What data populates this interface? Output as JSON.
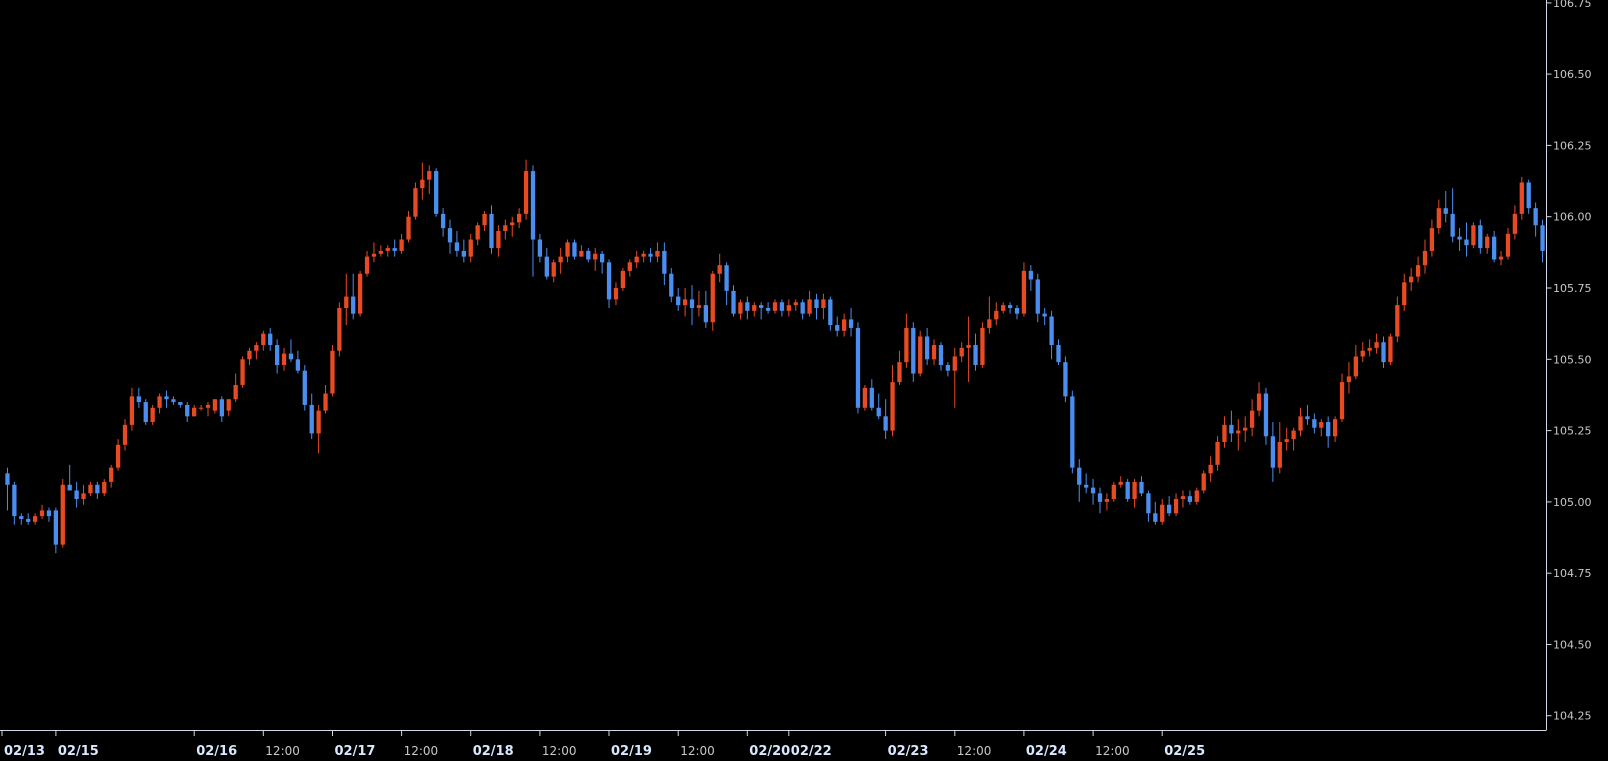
{
  "chart_data": {
    "type": "candlestick",
    "title": "",
    "xlabel": "",
    "ylabel": "",
    "ylim": [
      104.2,
      106.76
    ],
    "y_ticks": [
      "104.25",
      "104.50",
      "104.75",
      "105.00",
      "105.25",
      "105.50",
      "105.75",
      "106.00",
      "106.25",
      "106.50",
      "106.75"
    ],
    "x_ticks": [
      {
        "label": "02/13",
        "style": "date",
        "index": 0
      },
      {
        "label": "02/15",
        "style": "date",
        "index": 7
      },
      {
        "label": "02/16",
        "style": "date",
        "index": 27
      },
      {
        "label": "12:00",
        "style": "time",
        "index": 37
      },
      {
        "label": "02/17",
        "style": "date",
        "index": 47
      },
      {
        "label": "12:00",
        "style": "time",
        "index": 57
      },
      {
        "label": "02/18",
        "style": "date",
        "index": 67
      },
      {
        "label": "12:00",
        "style": "time",
        "index": 77
      },
      {
        "label": "02/19",
        "style": "date",
        "index": 87
      },
      {
        "label": "12:00",
        "style": "time",
        "index": 97
      },
      {
        "label": "02/20",
        "style": "date",
        "index": 107
      },
      {
        "label": "02/22",
        "style": "date",
        "index": 113
      },
      {
        "label": "02/23",
        "style": "date",
        "index": 127
      },
      {
        "label": "12:00",
        "style": "time",
        "index": 137
      },
      {
        "label": "02/24",
        "style": "date",
        "index": 147
      },
      {
        "label": "12:00",
        "style": "time",
        "index": 157
      },
      {
        "label": "02/25",
        "style": "date",
        "index": 167
      }
    ],
    "colors": {
      "up": "#e84b23",
      "down": "#4a8ff0",
      "background": "#000000",
      "axis": "#d0d8e8"
    },
    "candles": [
      [
        105.1,
        105.12,
        104.97,
        105.06
      ],
      [
        105.06,
        105.07,
        104.92,
        104.95
      ],
      [
        104.95,
        104.96,
        104.92,
        104.94
      ],
      [
        104.94,
        104.96,
        104.92,
        104.93
      ],
      [
        104.93,
        104.96,
        104.92,
        104.95
      ],
      [
        104.95,
        104.99,
        104.94,
        104.97
      ],
      [
        104.97,
        104.98,
        104.93,
        104.95
      ],
      [
        104.97,
        104.98,
        104.82,
        104.85
      ],
      [
        104.85,
        105.08,
        104.84,
        105.06
      ],
      [
        105.06,
        105.13,
        105.04,
        105.04
      ],
      [
        105.04,
        105.07,
        104.98,
        105.01
      ],
      [
        105.01,
        105.06,
        104.99,
        105.03
      ],
      [
        105.03,
        105.07,
        105.02,
        105.06
      ],
      [
        105.06,
        105.07,
        105.01,
        105.03
      ],
      [
        105.03,
        105.08,
        105.02,
        105.07
      ],
      [
        105.07,
        105.13,
        105.05,
        105.12
      ],
      [
        105.12,
        105.22,
        105.11,
        105.2
      ],
      [
        105.2,
        105.29,
        105.18,
        105.27
      ],
      [
        105.27,
        105.4,
        105.25,
        105.37
      ],
      [
        105.37,
        105.4,
        105.33,
        105.35
      ],
      [
        105.35,
        105.36,
        105.27,
        105.28
      ],
      [
        105.28,
        105.34,
        105.27,
        105.33
      ],
      [
        105.33,
        105.38,
        105.31,
        105.37
      ],
      [
        105.37,
        105.39,
        105.33,
        105.36
      ],
      [
        105.36,
        105.37,
        105.34,
        105.35
      ],
      [
        105.35,
        105.35,
        105.33,
        105.34
      ],
      [
        105.34,
        105.35,
        105.28,
        105.3
      ],
      [
        105.3,
        105.34,
        105.3,
        105.33
      ],
      [
        105.33,
        105.34,
        105.32,
        105.33
      ],
      [
        105.33,
        105.35,
        105.3,
        105.34
      ],
      [
        105.32,
        105.36,
        105.31,
        105.36
      ],
      [
        105.36,
        105.37,
        105.28,
        105.3
      ],
      [
        105.32,
        105.36,
        105.3,
        105.36
      ],
      [
        105.36,
        105.45,
        105.35,
        105.41
      ],
      [
        105.41,
        105.51,
        105.4,
        105.5
      ],
      [
        105.5,
        105.54,
        105.48,
        105.53
      ],
      [
        105.53,
        105.56,
        105.5,
        105.55
      ],
      [
        105.55,
        105.6,
        105.53,
        105.59
      ],
      [
        105.59,
        105.61,
        105.53,
        105.55
      ],
      [
        105.55,
        105.57,
        105.45,
        105.48
      ],
      [
        105.48,
        105.54,
        105.46,
        105.52
      ],
      [
        105.52,
        105.57,
        105.49,
        105.5
      ],
      [
        105.5,
        105.53,
        105.45,
        105.46
      ],
      [
        105.46,
        105.48,
        105.32,
        105.34
      ],
      [
        105.34,
        105.38,
        105.22,
        105.24
      ],
      [
        105.24,
        105.34,
        105.17,
        105.32
      ],
      [
        105.32,
        105.41,
        105.31,
        105.38
      ],
      [
        105.38,
        105.55,
        105.37,
        105.53
      ],
      [
        105.53,
        105.7,
        105.51,
        105.68
      ],
      [
        105.68,
        105.8,
        105.62,
        105.72
      ],
      [
        105.72,
        105.8,
        105.64,
        105.66
      ],
      [
        105.66,
        105.81,
        105.65,
        105.8
      ],
      [
        105.8,
        105.88,
        105.79,
        105.86
      ],
      [
        105.86,
        105.91,
        105.84,
        105.87
      ],
      [
        105.87,
        105.9,
        105.86,
        105.88
      ],
      [
        105.88,
        105.9,
        105.86,
        105.89
      ],
      [
        105.89,
        105.92,
        105.86,
        105.88
      ],
      [
        105.88,
        105.94,
        105.87,
        105.92
      ],
      [
        105.92,
        106.02,
        105.91,
        106.0
      ],
      [
        106.0,
        106.12,
        105.99,
        106.1
      ],
      [
        106.1,
        106.19,
        106.06,
        106.13
      ],
      [
        106.13,
        106.18,
        106.08,
        106.16
      ],
      [
        106.16,
        106.17,
        106.0,
        106.01
      ],
      [
        106.01,
        106.03,
        105.93,
        105.96
      ],
      [
        105.96,
        105.99,
        105.87,
        105.91
      ],
      [
        105.91,
        105.95,
        105.86,
        105.88
      ],
      [
        105.88,
        105.92,
        105.84,
        105.86
      ],
      [
        105.86,
        105.94,
        105.84,
        105.92
      ],
      [
        105.92,
        105.98,
        105.9,
        105.97
      ],
      [
        105.97,
        106.02,
        105.95,
        106.01
      ],
      [
        106.01,
        106.04,
        105.87,
        105.89
      ],
      [
        105.89,
        105.97,
        105.86,
        105.95
      ],
      [
        105.95,
        105.99,
        105.92,
        105.97
      ],
      [
        105.97,
        106.0,
        105.93,
        105.98
      ],
      [
        105.98,
        106.03,
        105.96,
        106.01
      ],
      [
        106.01,
        106.2,
        105.99,
        106.16
      ],
      [
        106.16,
        106.18,
        105.79,
        105.92
      ],
      [
        105.92,
        105.94,
        105.84,
        105.86
      ],
      [
        105.86,
        105.89,
        105.78,
        105.79
      ],
      [
        105.79,
        105.85,
        105.77,
        105.84
      ],
      [
        105.84,
        105.89,
        105.8,
        105.86
      ],
      [
        105.86,
        105.92,
        105.84,
        105.91
      ],
      [
        105.91,
        105.92,
        105.85,
        105.86
      ],
      [
        105.86,
        105.9,
        105.86,
        105.88
      ],
      [
        105.88,
        105.89,
        105.84,
        105.85
      ],
      [
        105.85,
        105.89,
        105.81,
        105.87
      ],
      [
        105.87,
        105.88,
        105.8,
        105.84
      ],
      [
        105.84,
        105.85,
        105.68,
        105.71
      ],
      [
        105.71,
        105.77,
        105.69,
        105.75
      ],
      [
        105.75,
        105.82,
        105.74,
        105.81
      ],
      [
        105.81,
        105.85,
        105.79,
        105.84
      ],
      [
        105.84,
        105.88,
        105.82,
        105.86
      ],
      [
        105.86,
        105.88,
        105.84,
        105.87
      ],
      [
        105.87,
        105.89,
        105.84,
        105.86
      ],
      [
        105.86,
        105.91,
        105.84,
        105.88
      ],
      [
        105.88,
        105.91,
        105.76,
        105.8
      ],
      [
        105.8,
        105.82,
        105.7,
        105.72
      ],
      [
        105.72,
        105.75,
        105.67,
        105.69
      ],
      [
        105.69,
        105.75,
        105.65,
        105.71
      ],
      [
        105.71,
        105.76,
        105.62,
        105.68
      ],
      [
        105.68,
        105.74,
        105.65,
        105.69
      ],
      [
        105.69,
        105.74,
        105.61,
        105.63
      ],
      [
        105.63,
        105.81,
        105.6,
        105.8
      ],
      [
        105.8,
        105.87,
        105.77,
        105.83
      ],
      [
        105.83,
        105.84,
        105.69,
        105.74
      ],
      [
        105.74,
        105.76,
        105.65,
        105.66
      ],
      [
        105.66,
        105.71,
        105.64,
        105.7
      ],
      [
        105.7,
        105.72,
        105.64,
        105.67
      ],
      [
        105.67,
        105.7,
        105.65,
        105.69
      ],
      [
        105.69,
        105.7,
        105.64,
        105.68
      ],
      [
        105.68,
        105.7,
        105.66,
        105.67
      ],
      [
        105.67,
        105.71,
        105.66,
        105.7
      ],
      [
        105.7,
        105.71,
        105.65,
        105.67
      ],
      [
        105.67,
        105.71,
        105.65,
        105.69
      ],
      [
        105.69,
        105.71,
        105.67,
        105.7
      ],
      [
        105.7,
        105.71,
        105.64,
        105.66
      ],
      [
        105.66,
        105.74,
        105.65,
        105.71
      ],
      [
        105.71,
        105.73,
        105.64,
        105.68
      ],
      [
        105.68,
        105.73,
        105.64,
        105.71
      ],
      [
        105.71,
        105.72,
        105.6,
        105.62
      ],
      [
        105.62,
        105.65,
        105.58,
        105.6
      ],
      [
        105.6,
        105.66,
        105.58,
        105.64
      ],
      [
        105.64,
        105.68,
        105.58,
        105.61
      ],
      [
        105.61,
        105.63,
        105.31,
        105.33
      ],
      [
        105.33,
        105.41,
        105.32,
        105.4
      ],
      [
        105.4,
        105.43,
        105.32,
        105.33
      ],
      [
        105.33,
        105.38,
        105.29,
        105.3
      ],
      [
        105.3,
        105.36,
        105.22,
        105.25
      ],
      [
        105.25,
        105.48,
        105.23,
        105.42
      ],
      [
        105.42,
        105.53,
        105.41,
        105.49
      ],
      [
        105.49,
        105.66,
        105.47,
        105.61
      ],
      [
        105.61,
        105.63,
        105.42,
        105.45
      ],
      [
        105.45,
        105.6,
        105.44,
        105.58
      ],
      [
        105.58,
        105.61,
        105.48,
        105.5
      ],
      [
        105.5,
        105.57,
        105.48,
        105.55
      ],
      [
        105.55,
        105.56,
        105.46,
        105.48
      ],
      [
        105.48,
        105.49,
        105.44,
        105.46
      ],
      [
        105.46,
        105.54,
        105.33,
        105.51
      ],
      [
        105.51,
        105.56,
        105.49,
        105.54
      ],
      [
        105.54,
        105.65,
        105.42,
        105.55
      ],
      [
        105.55,
        105.59,
        105.46,
        105.48
      ],
      [
        105.48,
        105.63,
        105.47,
        105.61
      ],
      [
        105.61,
        105.72,
        105.59,
        105.64
      ],
      [
        105.64,
        105.7,
        105.62,
        105.67
      ],
      [
        105.67,
        105.7,
        105.66,
        105.69
      ],
      [
        105.69,
        105.7,
        105.66,
        105.68
      ],
      [
        105.68,
        105.69,
        105.64,
        105.66
      ],
      [
        105.66,
        105.84,
        105.65,
        105.81
      ],
      [
        105.81,
        105.83,
        105.74,
        105.78
      ],
      [
        105.78,
        105.8,
        105.63,
        105.66
      ],
      [
        105.66,
        105.68,
        105.62,
        105.65
      ],
      [
        105.65,
        105.67,
        105.5,
        105.55
      ],
      [
        105.55,
        105.57,
        105.48,
        105.49
      ],
      [
        105.49,
        105.51,
        105.35,
        105.37
      ],
      [
        105.37,
        105.39,
        105.1,
        105.12
      ],
      [
        105.12,
        105.15,
        105.0,
        105.06
      ],
      [
        105.06,
        105.1,
        105.03,
        105.05
      ],
      [
        105.05,
        105.08,
        104.99,
        105.03
      ],
      [
        105.03,
        105.05,
        104.96,
        105.0
      ],
      [
        105.0,
        105.03,
        104.97,
        105.01
      ],
      [
        105.01,
        105.07,
        105.0,
        105.06
      ],
      [
        105.06,
        105.09,
        105.05,
        105.07
      ],
      [
        105.07,
        105.08,
        105.0,
        105.01
      ],
      [
        105.01,
        105.08,
        104.98,
        105.07
      ],
      [
        105.07,
        105.09,
        105.02,
        105.03
      ],
      [
        105.03,
        105.04,
        104.93,
        104.96
      ],
      [
        104.96,
        105.0,
        104.92,
        104.93
      ],
      [
        104.93,
        105.01,
        104.92,
        104.99
      ],
      [
        104.99,
        105.02,
        104.95,
        104.96
      ],
      [
        104.96,
        105.03,
        104.95,
        105.01
      ],
      [
        105.01,
        105.04,
        104.98,
        105.02
      ],
      [
        105.02,
        105.04,
        104.99,
        105.0
      ],
      [
        105.0,
        105.05,
        104.99,
        105.04
      ],
      [
        105.04,
        105.11,
        105.03,
        105.1
      ],
      [
        105.1,
        105.16,
        105.07,
        105.13
      ],
      [
        105.13,
        105.23,
        105.11,
        105.21
      ],
      [
        105.21,
        105.3,
        105.19,
        105.27
      ],
      [
        105.27,
        105.32,
        105.21,
        105.24
      ],
      [
        105.24,
        105.29,
        105.18,
        105.25
      ],
      [
        105.25,
        105.3,
        105.21,
        105.26
      ],
      [
        105.26,
        105.36,
        105.23,
        105.32
      ],
      [
        105.32,
        105.42,
        105.3,
        105.38
      ],
      [
        105.38,
        105.4,
        105.2,
        105.23
      ],
      [
        105.23,
        105.28,
        105.07,
        105.12
      ],
      [
        105.12,
        105.28,
        105.1,
        105.21
      ],
      [
        105.21,
        105.26,
        105.18,
        105.22
      ],
      [
        105.22,
        105.26,
        105.18,
        105.25
      ],
      [
        105.25,
        105.33,
        105.23,
        105.3
      ],
      [
        105.3,
        105.34,
        105.27,
        105.29
      ],
      [
        105.29,
        105.31,
        105.24,
        105.26
      ],
      [
        105.26,
        105.29,
        105.23,
        105.28
      ],
      [
        105.28,
        105.3,
        105.19,
        105.23
      ],
      [
        105.23,
        105.3,
        105.21,
        105.29
      ],
      [
        105.29,
        105.45,
        105.28,
        105.42
      ],
      [
        105.42,
        105.49,
        105.38,
        105.44
      ],
      [
        105.44,
        105.55,
        105.43,
        105.51
      ],
      [
        105.51,
        105.56,
        105.49,
        105.53
      ],
      [
        105.53,
        105.57,
        105.51,
        105.54
      ],
      [
        105.54,
        105.59,
        105.52,
        105.56
      ],
      [
        105.56,
        105.58,
        105.47,
        105.49
      ],
      [
        105.49,
        105.59,
        105.48,
        105.58
      ],
      [
        105.58,
        105.72,
        105.56,
        105.69
      ],
      [
        105.69,
        105.8,
        105.67,
        105.77
      ],
      [
        105.77,
        105.82,
        105.74,
        105.79
      ],
      [
        105.79,
        105.86,
        105.77,
        105.83
      ],
      [
        105.83,
        105.92,
        105.8,
        105.88
      ],
      [
        105.88,
        105.99,
        105.86,
        105.96
      ],
      [
        105.96,
        106.06,
        105.94,
        106.03
      ],
      [
        106.03,
        106.09,
        105.98,
        106.01
      ],
      [
        106.01,
        106.1,
        105.91,
        105.93
      ],
      [
        105.93,
        105.96,
        105.88,
        105.92
      ],
      [
        105.92,
        105.98,
        105.86,
        105.9
      ],
      [
        105.9,
        105.98,
        105.89,
        105.97
      ],
      [
        105.97,
        105.99,
        105.87,
        105.89
      ],
      [
        105.89,
        105.94,
        105.87,
        105.93
      ],
      [
        105.93,
        105.95,
        105.84,
        105.85
      ],
      [
        105.85,
        105.88,
        105.83,
        105.86
      ],
      [
        105.86,
        105.96,
        105.85,
        105.94
      ],
      [
        105.94,
        106.04,
        105.92,
        106.01
      ],
      [
        106.01,
        106.14,
        105.99,
        106.12
      ],
      [
        106.12,
        106.13,
        106.01,
        106.03
      ],
      [
        106.03,
        106.05,
        105.93,
        105.97
      ],
      [
        105.97,
        105.99,
        105.84,
        105.88
      ]
    ]
  }
}
